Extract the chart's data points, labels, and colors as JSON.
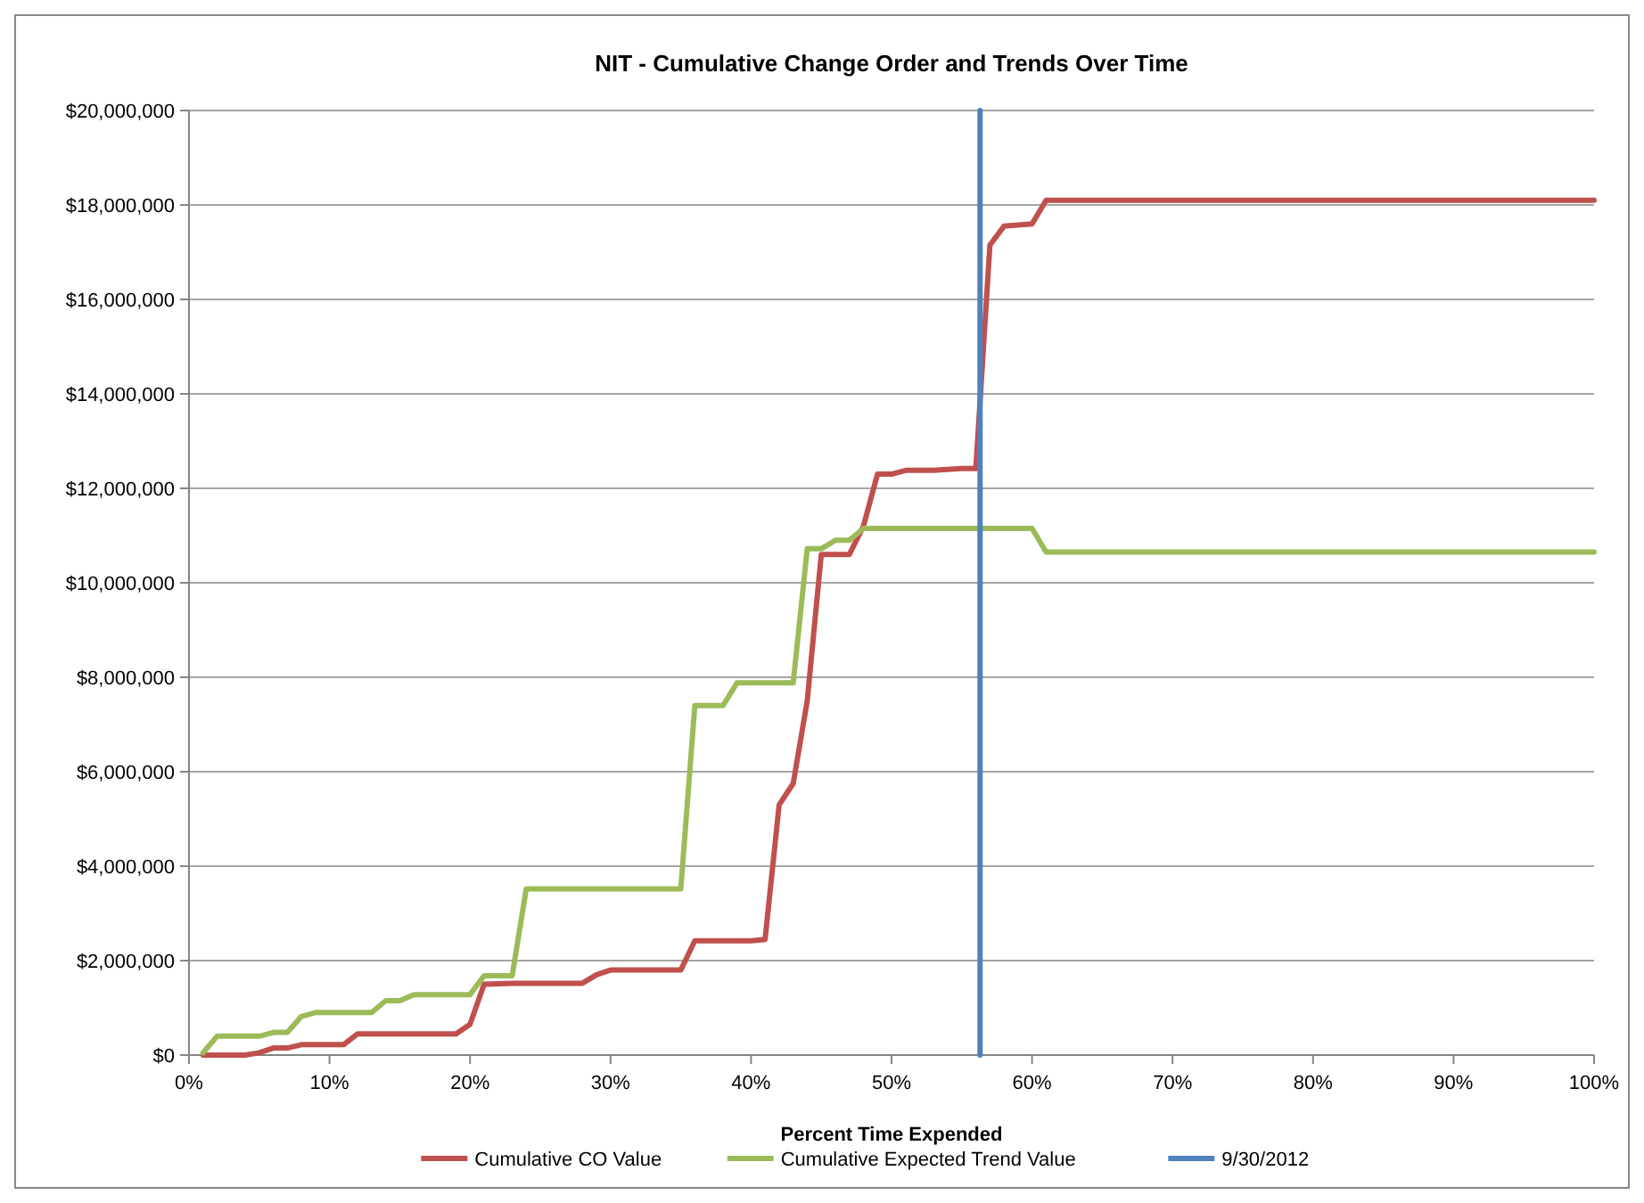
{
  "chart_data": {
    "type": "line",
    "title": "NIT - Cumulative Change Order and Trends  Over Time",
    "xlabel": "Percent Time Expended",
    "xlim": [
      0,
      100
    ],
    "xticks": [
      {
        "value": 0,
        "label": "0%"
      },
      {
        "value": 10,
        "label": "10%"
      },
      {
        "value": 20,
        "label": "20%"
      },
      {
        "value": 30,
        "label": "30%"
      },
      {
        "value": 40,
        "label": "40%"
      },
      {
        "value": 50,
        "label": "50%"
      },
      {
        "value": 60,
        "label": "60%"
      },
      {
        "value": 70,
        "label": "70%"
      },
      {
        "value": 80,
        "label": "80%"
      },
      {
        "value": 90,
        "label": "90%"
      },
      {
        "value": 100,
        "label": "100%"
      }
    ],
    "ylim": [
      0,
      20000000
    ],
    "yticks": [
      {
        "value": 0,
        "label": "$0"
      },
      {
        "value": 2000000,
        "label": "$2,000,000"
      },
      {
        "value": 4000000,
        "label": "$4,000,000"
      },
      {
        "value": 6000000,
        "label": "$6,000,000"
      },
      {
        "value": 8000000,
        "label": "$8,000,000"
      },
      {
        "value": 10000000,
        "label": "$10,000,000"
      },
      {
        "value": 12000000,
        "label": "$12,000,000"
      },
      {
        "value": 14000000,
        "label": "$14,000,000"
      },
      {
        "value": 16000000,
        "label": "$16,000,000"
      },
      {
        "value": 18000000,
        "label": "$18,000,000"
      },
      {
        "value": 20000000,
        "label": "$20,000,000"
      }
    ],
    "grid": "y",
    "legend": "bottom",
    "marker": "none",
    "line_style": "solid",
    "series": [
      {
        "name": "Cumulative CO Value",
        "color": "#c0504d",
        "x": [
          1,
          4,
          5,
          6,
          7,
          8,
          11,
          12,
          19,
          20,
          21,
          23,
          28,
          29,
          30,
          35,
          36,
          40,
          41,
          42,
          43,
          44,
          45,
          47,
          48,
          49,
          50,
          51,
          53,
          55,
          56,
          57,
          58,
          60,
          61,
          100
        ],
        "values": [
          0,
          0,
          50000,
          150000,
          150000,
          220000,
          220000,
          450000,
          450000,
          650000,
          1500000,
          1520000,
          1520000,
          1700000,
          1800000,
          1800000,
          2420000,
          2420000,
          2450000,
          5300000,
          5750000,
          7500000,
          10600000,
          10600000,
          11200000,
          12300000,
          12300000,
          12380000,
          12380000,
          12420000,
          12420000,
          17150000,
          17550000,
          17600000,
          18100000,
          18100000
        ]
      },
      {
        "name": "Cumulative Expected Trend Value",
        "color": "#9bbb59",
        "x": [
          1,
          2,
          5,
          6,
          7,
          8,
          9,
          13,
          14,
          15,
          16,
          20,
          21,
          23,
          24,
          35,
          36,
          38,
          39,
          43,
          44,
          45,
          46,
          47,
          48,
          60,
          61,
          100
        ],
        "values": [
          50000,
          400000,
          400000,
          480000,
          480000,
          820000,
          900000,
          900000,
          1150000,
          1150000,
          1280000,
          1280000,
          1680000,
          1680000,
          3520000,
          3520000,
          7400000,
          7400000,
          7880000,
          7880000,
          10720000,
          10720000,
          10900000,
          10900000,
          11150000,
          11150000,
          10650000,
          10650000
        ]
      },
      {
        "name": "9/30/2012",
        "color": "#4f81bd",
        "x": [
          56.3,
          56.3
        ],
        "values": [
          0,
          20000000
        ]
      }
    ]
  }
}
